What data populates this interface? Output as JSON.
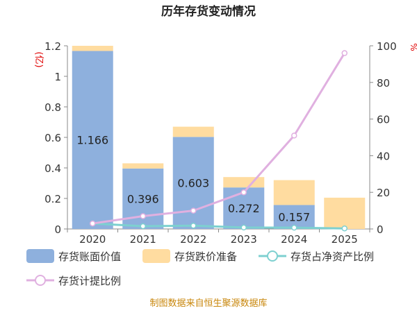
{
  "chart_data": {
    "type": "bar",
    "title": "历年存货变动情况",
    "categories": [
      "2020",
      "2021",
      "2022",
      "2023",
      "2024",
      "2025"
    ],
    "stacked": true,
    "left_axis": {
      "unit": "(亿)",
      "range": [
        0,
        1.2
      ],
      "ticks": [
        "0",
        "0.2",
        "0.4",
        "0.6",
        "0.8",
        "1",
        "1.2"
      ]
    },
    "right_axis": {
      "unit": "%",
      "range": [
        0,
        100
      ],
      "ticks": [
        "0",
        "20",
        "40",
        "60",
        "80",
        "100"
      ]
    },
    "series": [
      {
        "name": "存货账面价值",
        "type": "bar",
        "axis": "left",
        "color": "#8eb0dd",
        "values": [
          1.166,
          0.396,
          0.603,
          0.272,
          0.157,
          0.0
        ],
        "labels": [
          "1.166",
          "0.396",
          "0.603",
          "0.272",
          "0.157",
          ""
        ]
      },
      {
        "name": "存货跌价准备",
        "type": "bar",
        "axis": "left",
        "color": "#ffdca0",
        "values": [
          0.034,
          0.034,
          0.067,
          0.068,
          0.163,
          0.205
        ]
      },
      {
        "name": "存货占净资产比例",
        "type": "line",
        "axis": "right",
        "color": "#7dd0d0",
        "values": [
          3.0,
          1.5,
          1.8,
          0.8,
          0.7,
          0.3
        ]
      },
      {
        "name": "存货计提比例",
        "type": "line",
        "axis": "right",
        "color": "#e0b0e0",
        "values": [
          3.0,
          7.0,
          10.0,
          20.0,
          51.0,
          96.0
        ]
      }
    ],
    "grid": false,
    "legend_position": "bottom",
    "source": "制图数据来自恒生聚源数据库"
  }
}
